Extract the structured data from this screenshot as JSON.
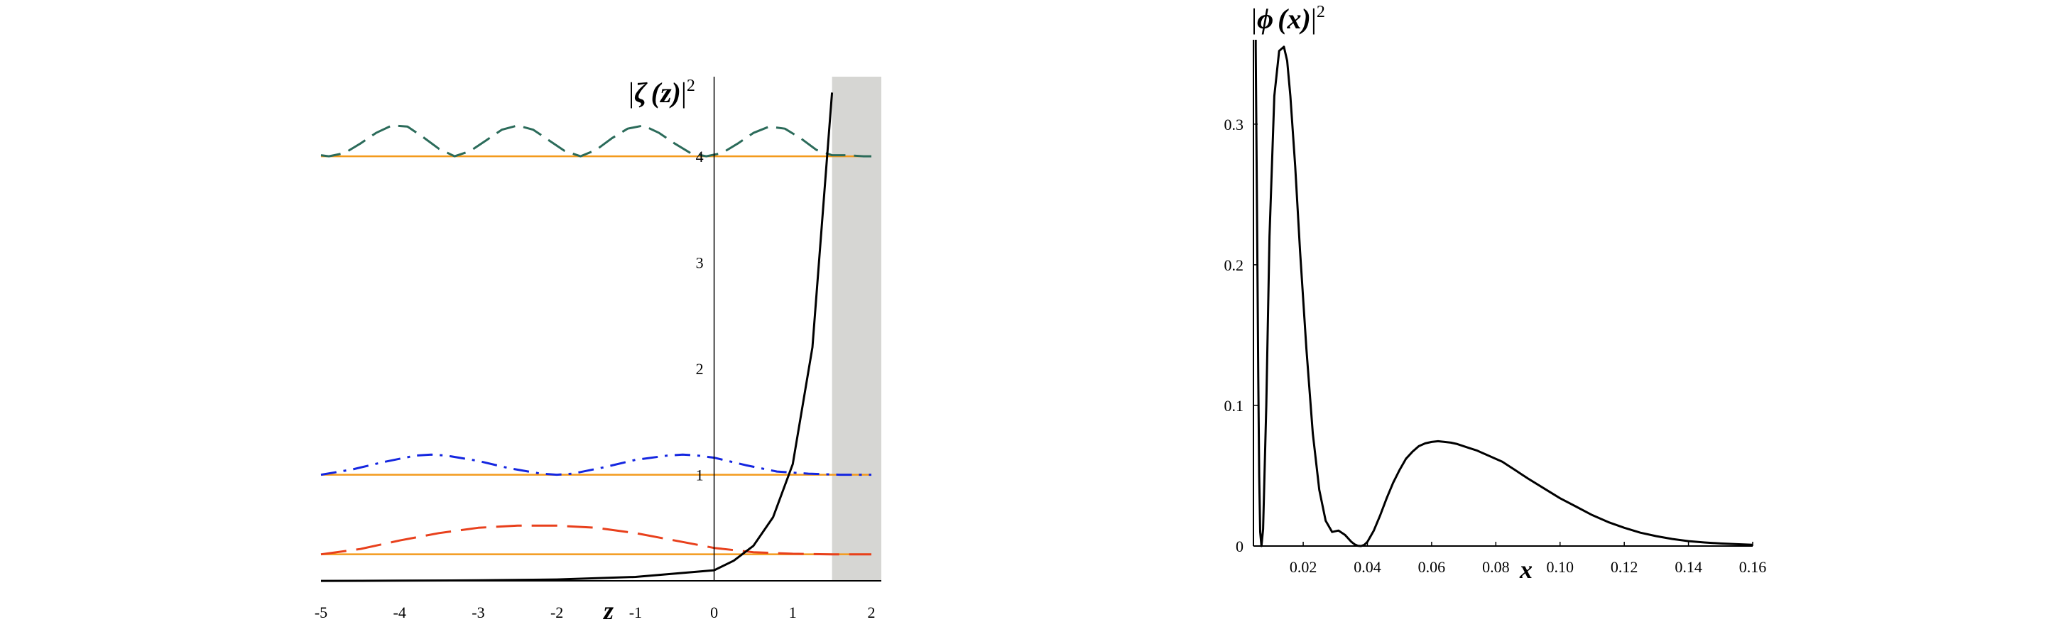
{
  "chart_data": [
    {
      "type": "line",
      "title": "",
      "xlabel": "z",
      "ylabel": {
        "prefix": "|",
        "var": "ζ",
        "arg": "(z)",
        "suffix": "|",
        "sup": "2"
      },
      "xlim": [
        -5,
        2
      ],
      "ylim": [
        -0.1,
        4.75
      ],
      "x_ticks": [
        -5,
        -4,
        -3,
        -2,
        -1,
        0,
        1,
        2
      ],
      "x_tick_labels": [
        "-5",
        "-4",
        "-3",
        "-2",
        "-1",
        "0",
        "1",
        "2"
      ],
      "y_ticks": [
        1,
        2,
        3,
        4
      ],
      "y_tick_labels": [
        "1",
        "2",
        "3",
        "4"
      ],
      "forbidden_region": {
        "x_from": 1.5,
        "x_to": 2,
        "color": "#d6d6d3"
      },
      "potential_curve": {
        "color": "#000000",
        "x": [
          -5,
          -4,
          -3,
          -2,
          -1,
          0,
          0.25,
          0.5,
          0.75,
          1,
          1.25,
          1.5
        ],
        "y": [
          0,
          0.002,
          0.005,
          0.013,
          0.037,
          0.1,
          0.19,
          0.33,
          0.6,
          1.1,
          2.2,
          4.6
        ]
      },
      "energy_levels": [
        {
          "energy": 0.25,
          "color": "#f39a1c"
        },
        {
          "energy": 1,
          "color": "#f39a1c"
        },
        {
          "energy": 4,
          "color": "#f39a1c"
        }
      ],
      "series": [
        {
          "color": "#e8401c",
          "dash": "long-dash",
          "x": [
            -5,
            -4.5,
            -4,
            -3.5,
            -3,
            -2.5,
            -2,
            -1.5,
            -1,
            -0.5,
            0,
            0.5,
            1,
            1.5,
            2
          ],
          "y": [
            0.25,
            0.3,
            0.38,
            0.45,
            0.5,
            0.52,
            0.52,
            0.5,
            0.45,
            0.38,
            0.31,
            0.27,
            0.255,
            0.25,
            0.25
          ]
        },
        {
          "color": "#1426e0",
          "dash": "dash-dot",
          "x": [
            -5,
            -4.6,
            -4.2,
            -3.8,
            -3.6,
            -3.4,
            -3,
            -2.6,
            -2.2,
            -2,
            -1.8,
            -1.4,
            -1,
            -0.6,
            -0.4,
            -0.2,
            0,
            0.4,
            0.8,
            1.2,
            1.6,
            2
          ],
          "y": [
            1,
            1.05,
            1.12,
            1.18,
            1.19,
            1.18,
            1.13,
            1.06,
            1.01,
            1,
            1.01,
            1.07,
            1.14,
            1.18,
            1.19,
            1.18,
            1.16,
            1.09,
            1.03,
            1.01,
            1,
            1
          ]
        },
        {
          "color": "#2b6b5a",
          "dash": "dash",
          "x": [
            -5,
            -4.9,
            -4.7,
            -4.5,
            -4.3,
            -4.1,
            -3.9,
            -3.7,
            -3.5,
            -3.3,
            -3.1,
            -2.9,
            -2.7,
            -2.5,
            -2.3,
            -2.1,
            -1.9,
            -1.7,
            -1.5,
            -1.3,
            -1.1,
            -0.9,
            -0.7,
            -0.5,
            -0.3,
            -0.1,
            0.1,
            0.3,
            0.5,
            0.7,
            0.9,
            1.1,
            1.3,
            1.5,
            1.7,
            1.9,
            2
          ],
          "y": [
            4.01,
            4,
            4.03,
            4.12,
            4.22,
            4.29,
            4.28,
            4.18,
            4.07,
            4,
            4.05,
            4.15,
            4.25,
            4.29,
            4.25,
            4.15,
            4.05,
            4,
            4.06,
            4.17,
            4.26,
            4.29,
            4.22,
            4.12,
            4.03,
            4,
            4.03,
            4.12,
            4.22,
            4.28,
            4.26,
            4.17,
            4.06,
            4.01,
            4.01,
            4,
            4
          ]
        }
      ]
    },
    {
      "type": "line",
      "title": "",
      "xlabel": "x",
      "ylabel": {
        "prefix": "|",
        "var": "ϕ",
        "arg": "(x)",
        "suffix": "|",
        "sup": "2"
      },
      "xlim": [
        0.0045,
        0.16
      ],
      "ylim": [
        0,
        0.36
      ],
      "x_ticks": [
        0.02,
        0.04,
        0.06,
        0.08,
        0.1,
        0.12,
        0.14,
        0.16
      ],
      "x_tick_labels": [
        "0.02",
        "0.04",
        "0.06",
        "0.08",
        "0.10",
        "0.12",
        "0.14",
        "0.16"
      ],
      "y_ticks": [
        0,
        0.1,
        0.2,
        0.3
      ],
      "y_tick_labels": [
        "0",
        "0.1",
        "0.2",
        "0.3"
      ],
      "series": [
        {
          "color": "#000000",
          "dash": "solid",
          "x": [
            0.0052,
            0.0056,
            0.006,
            0.0063,
            0.0066,
            0.007,
            0.0075,
            0.0085,
            0.0095,
            0.011,
            0.0125,
            0.014,
            0.015,
            0.016,
            0.0175,
            0.019,
            0.021,
            0.023,
            0.025,
            0.027,
            0.029,
            0.031,
            0.033,
            0.035,
            0.036,
            0.037,
            0.038,
            0.039,
            0.04,
            0.042,
            0.044,
            0.046,
            0.048,
            0.05,
            0.052,
            0.054,
            0.056,
            0.058,
            0.06,
            0.062,
            0.064,
            0.066,
            0.068,
            0.07,
            0.072,
            0.074,
            0.076,
            0.078,
            0.08,
            0.082,
            0.084,
            0.086,
            0.088,
            0.09,
            0.095,
            0.1,
            0.105,
            0.11,
            0.115,
            0.12,
            0.125,
            0.13,
            0.135,
            0.14,
            0.145,
            0.15,
            0.155,
            0.16
          ],
          "y": [
            0.355,
            0.24,
            0.12,
            0.05,
            0.01,
            0,
            0.012,
            0.1,
            0.22,
            0.32,
            0.352,
            0.355,
            0.345,
            0.32,
            0.27,
            0.21,
            0.14,
            0.08,
            0.04,
            0.018,
            0.01,
            0.011,
            0.008,
            0.003,
            0.0012,
            0.0002,
            0,
            0.0008,
            0.003,
            0.011,
            0.022,
            0.034,
            0.045,
            0.054,
            0.062,
            0.067,
            0.071,
            0.073,
            0.074,
            0.0745,
            0.074,
            0.0735,
            0.0725,
            0.071,
            0.0695,
            0.068,
            0.066,
            0.064,
            0.062,
            0.06,
            0.057,
            0.054,
            0.051,
            0.048,
            0.041,
            0.034,
            0.028,
            0.022,
            0.017,
            0.013,
            0.0095,
            0.007,
            0.005,
            0.0035,
            0.0025,
            0.0018,
            0.0013,
            0.0009
          ]
        }
      ]
    }
  ]
}
